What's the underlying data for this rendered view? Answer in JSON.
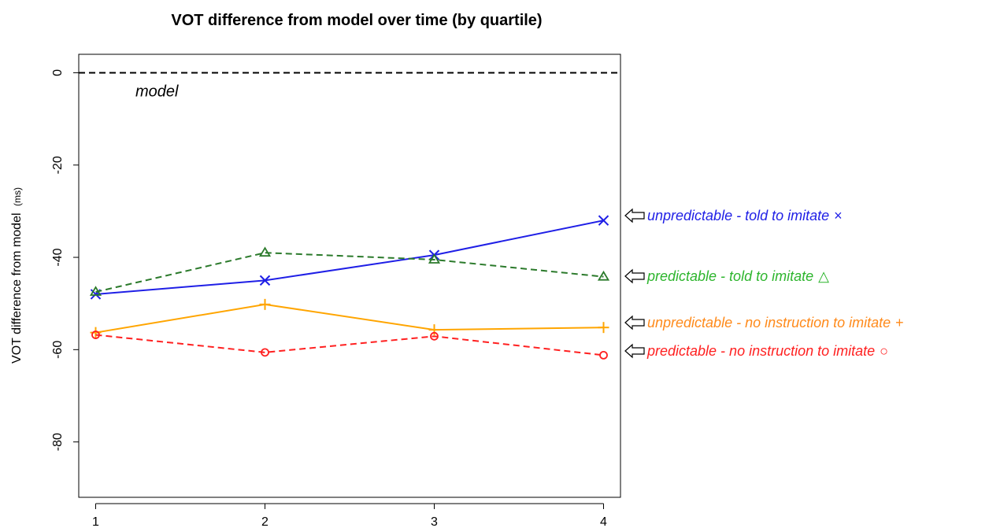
{
  "chart_data": {
    "type": "line",
    "title": "VOT difference from model over time (by quartile)",
    "xlabel": "",
    "ylabel": "VOT difference from model",
    "ylabel_unit": "(ms)",
    "x": [
      1,
      2,
      3,
      4
    ],
    "x_ticks": [
      "1",
      "2",
      "3",
      "4"
    ],
    "y_ticks": [
      "0",
      "-20",
      "-40",
      "-60",
      "-80"
    ],
    "ylim": [
      -92,
      4
    ],
    "xlim": [
      0.9,
      4.1
    ],
    "grid": false,
    "legend_placement": "right",
    "reference_line": {
      "y": 0,
      "label": "model",
      "color": "#000000",
      "dash": true
    },
    "series": [
      {
        "name": "unpredictable - told to imitate",
        "values": [
          -48,
          -45,
          -39.5,
          -32
        ],
        "color": "#1f1fe6",
        "dash": false,
        "marker": "x",
        "marker_glyph": "×"
      },
      {
        "name": "predictable - told to imitate",
        "values": [
          -47.5,
          -39,
          -40.5,
          -44.2
        ],
        "color": "#2b7a2b",
        "dash": true,
        "marker": "triangle",
        "marker_glyph": "△",
        "legend_color": "#2db52d"
      },
      {
        "name": "unpredictable - no instruction to imitate",
        "values": [
          -56.3,
          -50.2,
          -55.7,
          -55.2
        ],
        "color": "#ffa500",
        "dash": false,
        "marker": "plus",
        "marker_glyph": "+",
        "legend_color": "#ff8a1a"
      },
      {
        "name": "predictable - no instruction to imitate",
        "values": [
          -56.8,
          -60.6,
          -57.1,
          -61.2
        ],
        "color": "#ff2020",
        "dash": true,
        "marker": "circle",
        "marker_glyph": "○"
      }
    ]
  }
}
